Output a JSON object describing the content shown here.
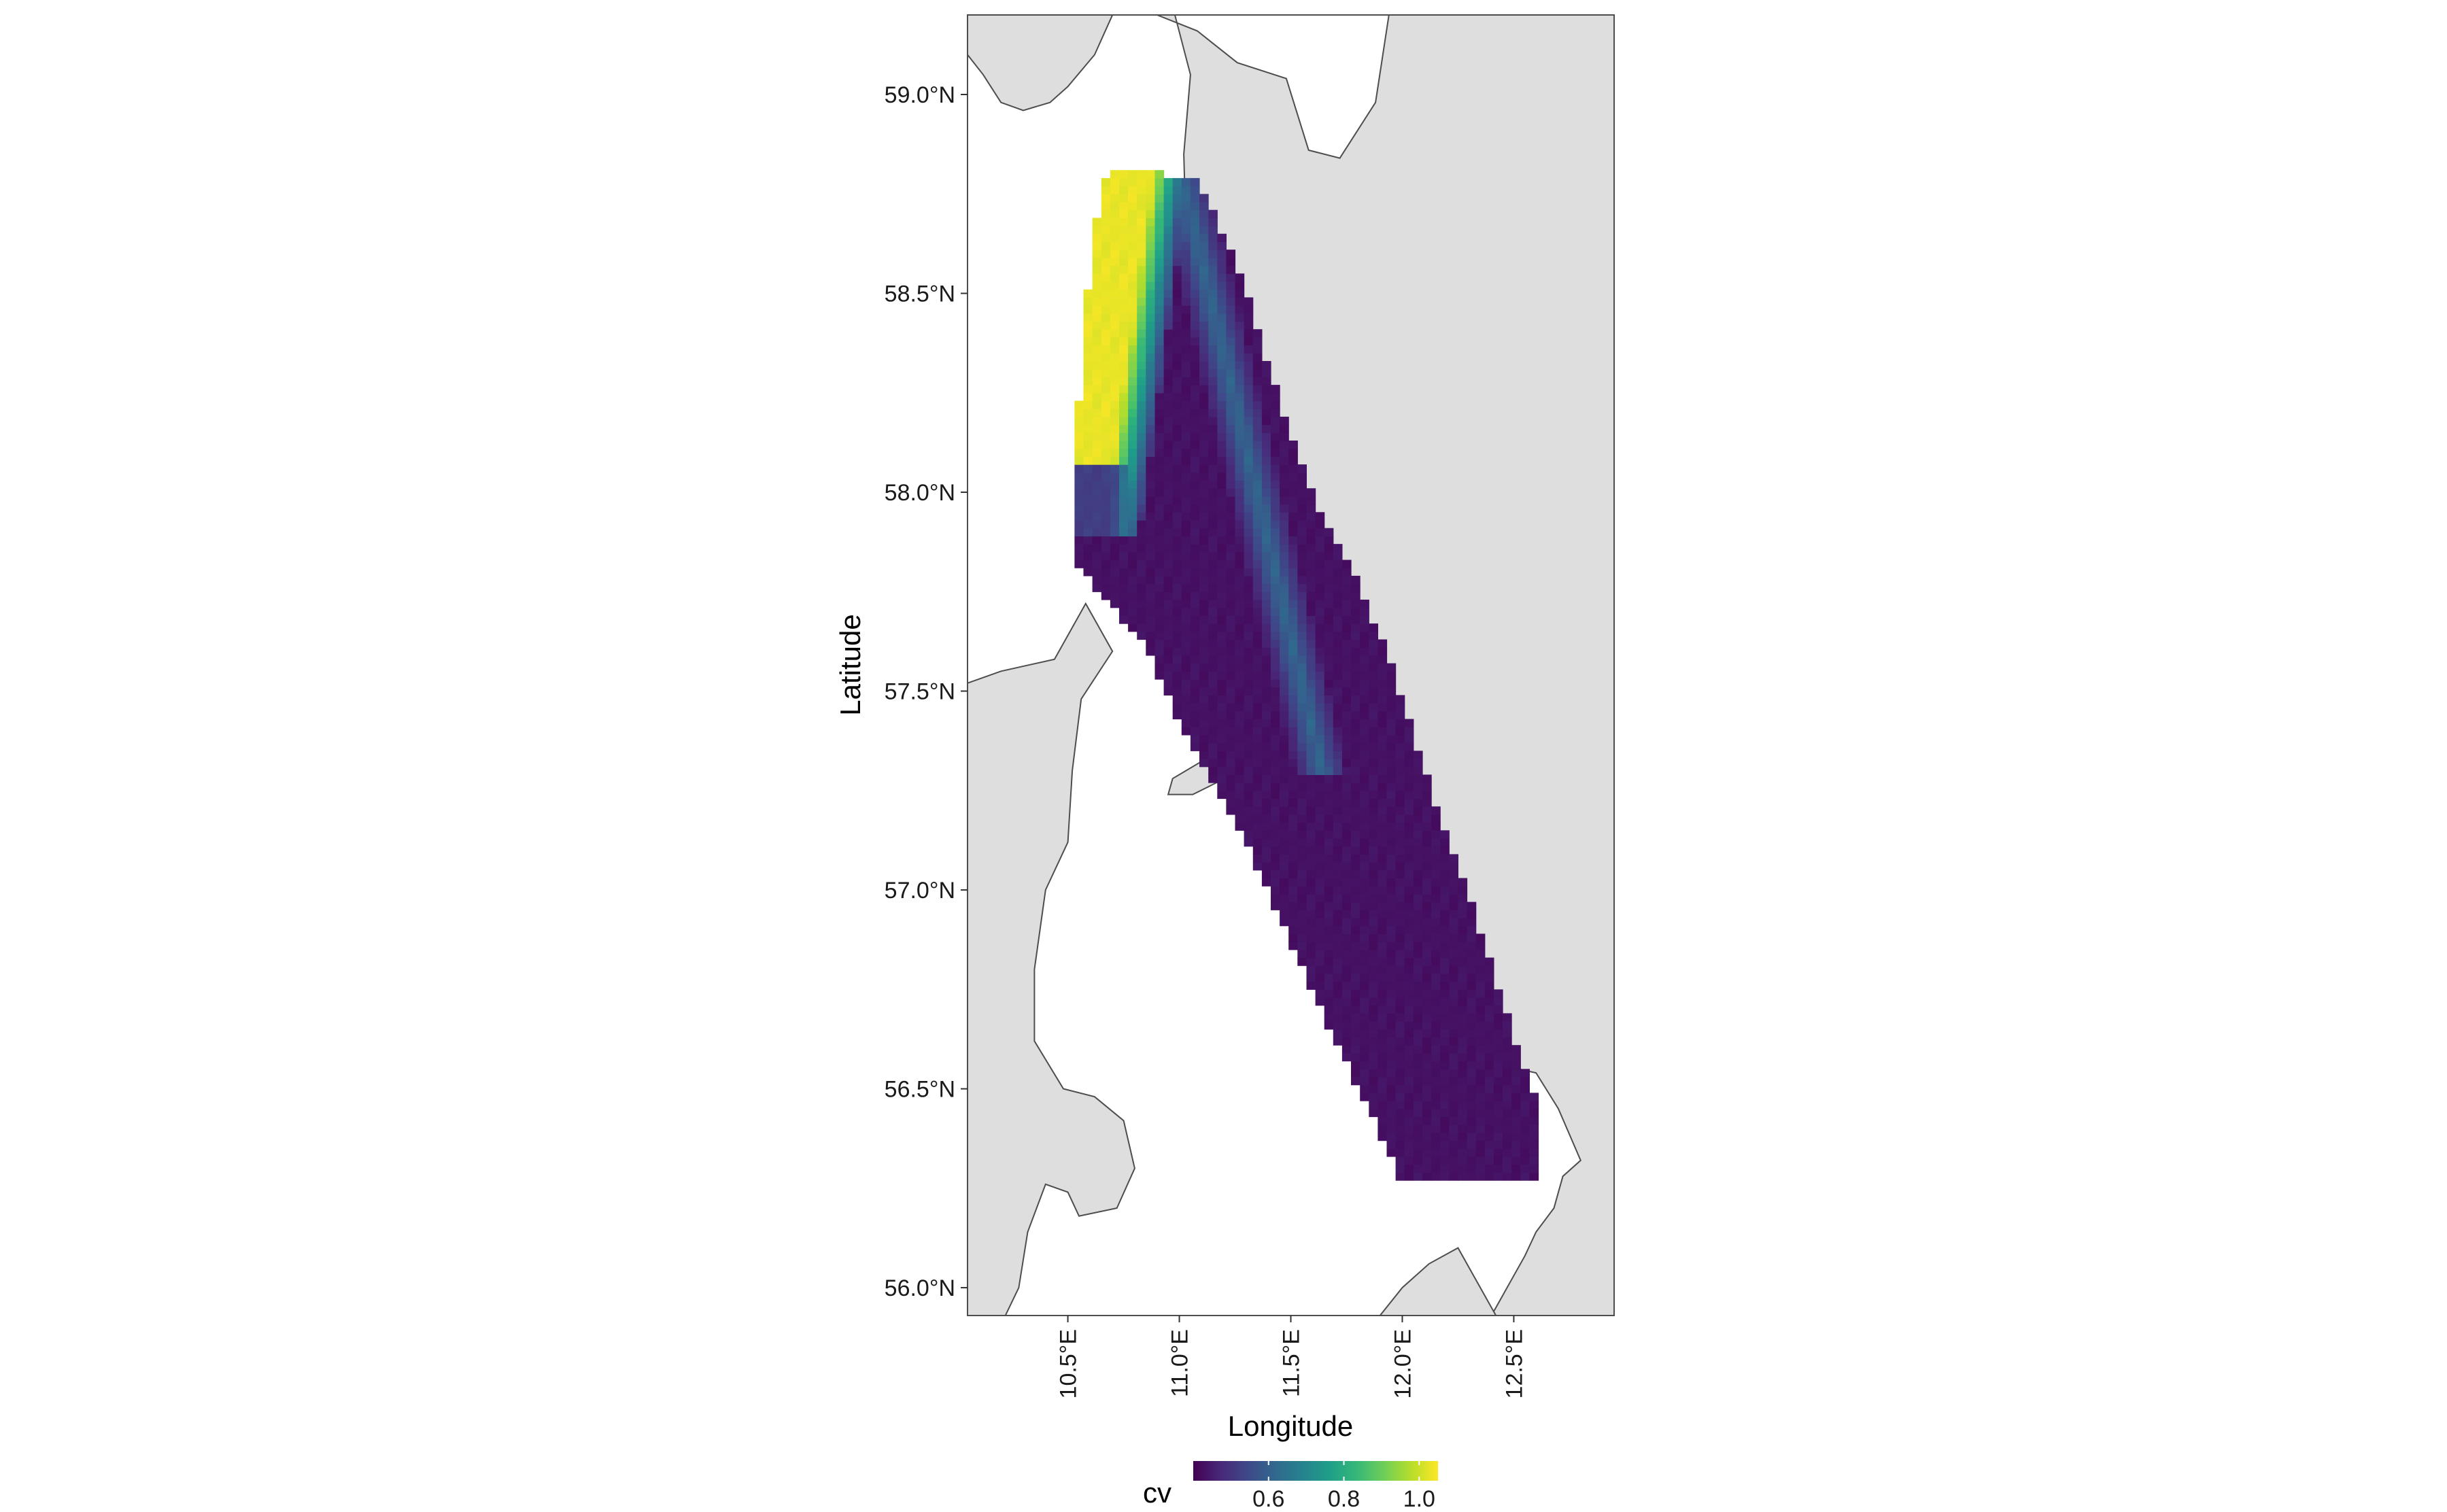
{
  "chart_data": {
    "type": "heatmap",
    "title": "",
    "xlabel": "Longitude",
    "ylabel": "Latitude",
    "xlim": [
      10.05,
      12.95
    ],
    "ylim": [
      55.93,
      59.2
    ],
    "x_ticks": [
      {
        "value": 10.5,
        "label": "10.5°E"
      },
      {
        "value": 11.0,
        "label": "11.0°E"
      },
      {
        "value": 11.5,
        "label": "11.5°E"
      },
      {
        "value": 12.0,
        "label": "12.0°E"
      },
      {
        "value": 12.5,
        "label": "12.5°E"
      }
    ],
    "y_ticks": [
      {
        "value": 56.0,
        "label": "56.0°N"
      },
      {
        "value": 56.5,
        "label": "56.5°N"
      },
      {
        "value": 57.0,
        "label": "57.0°N"
      },
      {
        "value": 57.5,
        "label": "57.5°N"
      },
      {
        "value": 58.0,
        "label": "58.0°N"
      },
      {
        "value": 58.5,
        "label": "58.5°N"
      },
      {
        "value": 59.0,
        "label": "59.0°N"
      }
    ],
    "grid": false,
    "legend": {
      "title": "cv",
      "position": "bottom",
      "colormap": "viridis",
      "range": [
        0.4,
        1.05
      ],
      "ticks": [
        {
          "value": 0.6,
          "label": "0.6"
        },
        {
          "value": 0.8,
          "label": "0.8"
        },
        {
          "value": 1.0,
          "label": "1.0"
        }
      ]
    },
    "colors": {
      "land": "#dedede",
      "coastline": "#4d4d4d",
      "sea": "#ffffff",
      "viridis": [
        "#440154",
        "#482878",
        "#3e4989",
        "#31688e",
        "#26828e",
        "#1f9e89",
        "#35b779",
        "#6ece58",
        "#b5de2b",
        "#fde725"
      ]
    },
    "grid_cell_deg": [
      0.04,
      0.02
    ],
    "region_polygon": [
      [
        10.68,
        58.82
      ],
      [
        11.08,
        58.79
      ],
      [
        11.22,
        58.62
      ],
      [
        11.33,
        58.45
      ],
      [
        11.42,
        58.28
      ],
      [
        11.52,
        58.12
      ],
      [
        11.62,
        57.96
      ],
      [
        11.78,
        57.8
      ],
      [
        11.9,
        57.64
      ],
      [
        11.99,
        57.5
      ],
      [
        12.07,
        57.36
      ],
      [
        12.16,
        57.2
      ],
      [
        12.25,
        57.06
      ],
      [
        12.33,
        56.93
      ],
      [
        12.43,
        56.76
      ],
      [
        12.52,
        56.6
      ],
      [
        12.61,
        56.46
      ],
      [
        12.61,
        56.28
      ],
      [
        11.99,
        56.28
      ],
      [
        11.84,
        56.46
      ],
      [
        11.7,
        56.62
      ],
      [
        11.56,
        56.79
      ],
      [
        11.43,
        56.96
      ],
      [
        11.28,
        57.14
      ],
      [
        11.13,
        57.28
      ],
      [
        10.97,
        57.46
      ],
      [
        10.84,
        57.62
      ],
      [
        10.62,
        57.76
      ],
      [
        10.51,
        57.84
      ],
      [
        10.51,
        58.08
      ],
      [
        10.57,
        58.32
      ],
      [
        10.6,
        58.6
      ]
    ],
    "land_polygons": [
      {
        "name": "sweden",
        "points": [
          [
            12.95,
            59.2
          ],
          [
            11.94,
            59.2
          ],
          [
            11.88,
            58.98
          ],
          [
            11.72,
            58.84
          ],
          [
            11.58,
            58.86
          ],
          [
            11.48,
            59.04
          ],
          [
            11.26,
            59.08
          ],
          [
            11.08,
            59.16
          ],
          [
            10.9,
            59.2
          ],
          [
            10.98,
            59.2
          ],
          [
            11.05,
            59.05
          ],
          [
            11.02,
            58.85
          ],
          [
            11.03,
            58.65
          ],
          [
            11.05,
            58.45
          ],
          [
            11.05,
            58.32
          ],
          [
            11.12,
            58.22
          ],
          [
            11.16,
            58.1
          ],
          [
            11.24,
            57.95
          ],
          [
            11.34,
            57.8
          ],
          [
            11.42,
            57.7
          ],
          [
            11.6,
            57.6
          ],
          [
            11.76,
            57.42
          ],
          [
            11.88,
            57.28
          ],
          [
            12.0,
            57.1
          ],
          [
            12.1,
            56.94
          ],
          [
            12.2,
            56.82
          ],
          [
            12.3,
            56.66
          ],
          [
            12.44,
            56.56
          ],
          [
            12.6,
            56.54
          ],
          [
            12.7,
            56.45
          ],
          [
            12.8,
            56.32
          ],
          [
            12.72,
            56.28
          ],
          [
            12.68,
            56.2
          ],
          [
            12.6,
            56.14
          ],
          [
            12.55,
            56.08
          ],
          [
            12.45,
            55.98
          ],
          [
            12.4,
            55.93
          ],
          [
            12.95,
            55.93
          ]
        ]
      },
      {
        "name": "denmark",
        "points": [
          [
            10.05,
            57.52
          ],
          [
            10.2,
            57.55
          ],
          [
            10.44,
            57.58
          ],
          [
            10.58,
            57.72
          ],
          [
            10.7,
            57.6
          ],
          [
            10.56,
            57.48
          ],
          [
            10.52,
            57.3
          ],
          [
            10.5,
            57.12
          ],
          [
            10.4,
            57.0
          ],
          [
            10.35,
            56.8
          ],
          [
            10.35,
            56.62
          ],
          [
            10.48,
            56.5
          ],
          [
            10.62,
            56.48
          ],
          [
            10.75,
            56.42
          ],
          [
            10.8,
            56.3
          ],
          [
            10.72,
            56.2
          ],
          [
            10.55,
            56.18
          ],
          [
            10.5,
            56.24
          ],
          [
            10.4,
            56.26
          ],
          [
            10.32,
            56.14
          ],
          [
            10.28,
            56.0
          ],
          [
            10.22,
            55.93
          ],
          [
            10.05,
            55.93
          ]
        ]
      },
      {
        "name": "laeso",
        "points": [
          [
            10.97,
            57.28
          ],
          [
            11.12,
            57.33
          ],
          [
            11.24,
            57.29
          ],
          [
            11.06,
            57.24
          ],
          [
            10.95,
            57.24
          ]
        ]
      },
      {
        "name": "zealand",
        "points": [
          [
            11.9,
            55.93
          ],
          [
            12.0,
            56.0
          ],
          [
            12.12,
            56.06
          ],
          [
            12.25,
            56.1
          ],
          [
            12.42,
            55.93
          ]
        ]
      },
      {
        "name": "norway",
        "points": [
          [
            10.05,
            59.2
          ],
          [
            10.05,
            59.1
          ],
          [
            10.12,
            59.05
          ],
          [
            10.2,
            58.98
          ],
          [
            10.3,
            58.96
          ],
          [
            10.42,
            58.98
          ],
          [
            10.5,
            59.02
          ],
          [
            10.62,
            59.1
          ],
          [
            10.7,
            59.2
          ]
        ]
      }
    ]
  }
}
